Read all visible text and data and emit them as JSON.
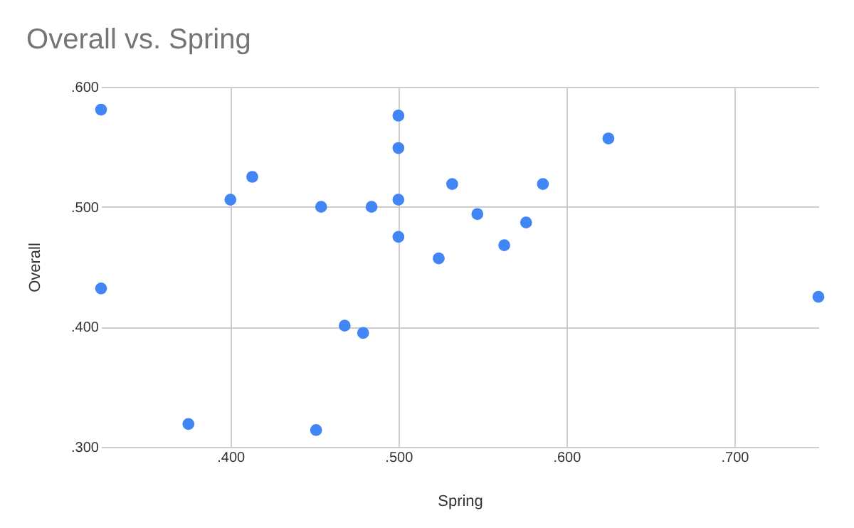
{
  "chart_data": {
    "type": "scatter",
    "title": "Overall vs. Spring",
    "xlabel": "Spring",
    "ylabel": "Overall",
    "x": [
      0.323,
      0.323,
      0.375,
      0.4,
      0.413,
      0.454,
      0.451,
      0.468,
      0.479,
      0.484,
      0.5,
      0.5,
      0.5,
      0.5,
      0.524,
      0.532,
      0.547,
      0.563,
      0.576,
      0.586,
      0.625,
      0.75
    ],
    "series": [
      {
        "color": "#4285f4",
        "values": [
          0.581,
          0.432,
          0.319,
          0.506,
          0.525,
          0.5,
          0.314,
          0.401,
          0.395,
          0.5,
          0.576,
          0.549,
          0.506,
          0.475,
          0.457,
          0.519,
          0.494,
          0.468,
          0.487,
          0.519,
          0.557,
          0.425
        ]
      }
    ],
    "xlim": [
      0.323,
      0.75
    ],
    "ylim": [
      0.3,
      0.6
    ],
    "xticks": [
      {
        "value": 0.4,
        "label": ".400"
      },
      {
        "value": 0.5,
        "label": ".500"
      },
      {
        "value": 0.6,
        "label": ".600"
      },
      {
        "value": 0.7,
        "label": ".700"
      }
    ],
    "yticks": [
      {
        "value": 0.3,
        "label": ".300"
      },
      {
        "value": 0.4,
        "label": ".400"
      },
      {
        "value": 0.5,
        "label": ".500"
      },
      {
        "value": 0.6,
        "label": ".600"
      }
    ],
    "grid": true,
    "marker": "circle"
  }
}
